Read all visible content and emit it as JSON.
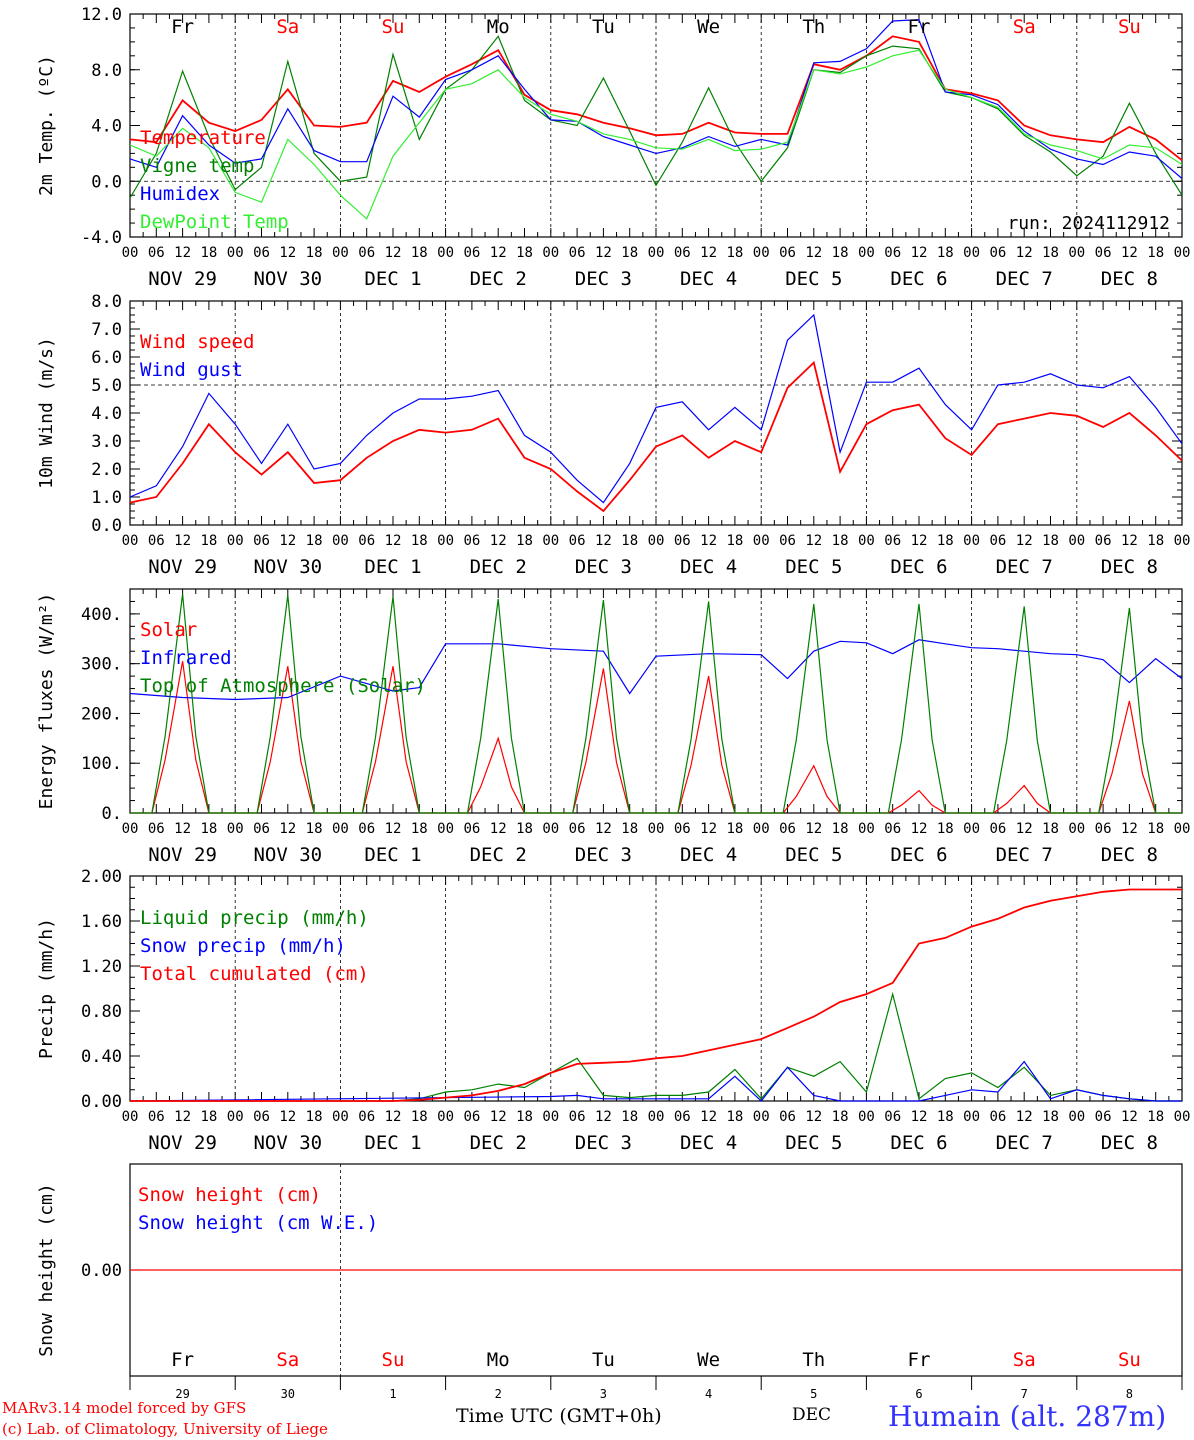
{
  "chart_data": [
    {
      "type": "line",
      "id": "temp",
      "ylabel": "2m Temp. (ºC)",
      "ylim": [
        -4,
        12
      ],
      "yticks": [
        "12.0",
        "8.0",
        "4.0",
        "0.0",
        "-4.0"
      ],
      "ytick_values": [
        12,
        8,
        4,
        0,
        -4
      ],
      "dashed_reference": 0,
      "annotation": "run: 2024112912",
      "day_letters": [
        "Fr",
        "Sa",
        "Su",
        "Mo",
        "Tu",
        "We",
        "Th",
        "Fr",
        "Sa",
        "Su"
      ],
      "day_letter_colors": [
        "#000000",
        "#ff0000",
        "#ff0000",
        "#000000",
        "#000000",
        "#000000",
        "#000000",
        "#000000",
        "#ff0000",
        "#ff0000"
      ],
      "series": [
        {
          "name": "Temperature",
          "color": "#ff0000",
          "x": [
            0,
            6,
            12,
            18,
            24,
            30,
            36,
            42,
            48,
            54,
            60,
            66,
            72,
            78,
            84,
            90,
            96,
            102,
            108,
            114,
            120,
            126,
            132,
            138,
            144,
            150,
            156,
            162,
            168,
            174,
            180,
            186,
            192,
            198,
            204,
            210,
            216,
            222,
            228,
            234,
            240
          ],
          "values": [
            3.0,
            2.8,
            5.8,
            4.2,
            3.6,
            4.4,
            6.6,
            4.0,
            3.9,
            4.2,
            7.2,
            6.4,
            7.5,
            8.4,
            9.4,
            6.2,
            5.1,
            4.8,
            4.2,
            3.8,
            3.3,
            3.4,
            4.2,
            3.5,
            3.4,
            3.4,
            8.4,
            8.0,
            9.0,
            10.4,
            10.0,
            6.6,
            6.3,
            5.8,
            4.0,
            3.3,
            3.0,
            2.8,
            3.9,
            3.0,
            1.5
          ]
        },
        {
          "name": "Vigne temp",
          "color": "#008000",
          "x": [
            0,
            6,
            12,
            18,
            24,
            30,
            36,
            42,
            48,
            54,
            60,
            66,
            72,
            78,
            84,
            90,
            96,
            102,
            108,
            114,
            120,
            126,
            132,
            138,
            144,
            150,
            156,
            162,
            168,
            174,
            180,
            186,
            192,
            198,
            204,
            210,
            216,
            222,
            228,
            234,
            240
          ],
          "values": [
            -1.2,
            2.0,
            7.9,
            3.2,
            -0.6,
            1.0,
            8.6,
            2.0,
            0.0,
            0.3,
            9.1,
            3.0,
            6.6,
            8.0,
            10.4,
            5.8,
            4.4,
            4.0,
            7.4,
            3.6,
            -0.3,
            2.8,
            6.7,
            2.8,
            0.0,
            2.4,
            8.0,
            7.8,
            9.0,
            9.7,
            9.5,
            6.4,
            6.0,
            5.2,
            3.3,
            2.1,
            0.4,
            1.8,
            5.6,
            2.0,
            -1.0
          ]
        },
        {
          "name": "Humidex",
          "color": "#0000ff",
          "x": [
            0,
            6,
            12,
            18,
            24,
            30,
            36,
            42,
            48,
            54,
            60,
            66,
            72,
            78,
            84,
            90,
            96,
            102,
            108,
            114,
            120,
            126,
            132,
            138,
            144,
            150,
            156,
            162,
            168,
            174,
            180,
            186,
            192,
            198,
            204,
            210,
            216,
            222,
            228,
            234,
            240
          ],
          "values": [
            1.6,
            1.0,
            4.7,
            2.6,
            1.3,
            1.6,
            5.2,
            2.2,
            1.4,
            1.4,
            6.1,
            4.6,
            7.3,
            8.0,
            9.0,
            6.6,
            4.4,
            4.3,
            3.2,
            2.6,
            2.0,
            2.4,
            3.2,
            2.5,
            3.0,
            2.6,
            8.5,
            8.6,
            9.5,
            11.5,
            11.6,
            6.4,
            6.2,
            5.5,
            3.6,
            2.3,
            1.6,
            1.2,
            2.1,
            1.8,
            0.2
          ]
        },
        {
          "name": "DewPoint Temp",
          "color": "#33ee33",
          "x": [
            0,
            6,
            12,
            18,
            24,
            30,
            36,
            42,
            48,
            54,
            60,
            66,
            72,
            78,
            84,
            90,
            96,
            102,
            108,
            114,
            120,
            126,
            132,
            138,
            144,
            150,
            156,
            162,
            168,
            174,
            180,
            186,
            192,
            198,
            204,
            210,
            216,
            222,
            228,
            234,
            240
          ],
          "values": [
            2.6,
            1.8,
            3.8,
            2.4,
            -0.8,
            -1.5,
            3.0,
            1.2,
            -1.0,
            -2.7,
            1.8,
            4.2,
            6.6,
            7.0,
            8.0,
            6.0,
            4.8,
            4.3,
            3.4,
            3.0,
            2.4,
            2.3,
            3.0,
            2.2,
            2.3,
            2.8,
            8.0,
            7.7,
            8.2,
            9.0,
            9.4,
            6.6,
            6.0,
            5.3,
            3.4,
            2.6,
            2.2,
            1.6,
            2.6,
            2.4,
            1.2
          ]
        }
      ]
    },
    {
      "type": "line",
      "id": "wind",
      "ylabel": "10m Wind (m/s)",
      "ylim": [
        0,
        8
      ],
      "yticks": [
        "8.0",
        "7.0",
        "6.0",
        "5.0",
        "4.0",
        "3.0",
        "2.0",
        "1.0",
        "0.0"
      ],
      "ytick_values": [
        8,
        7,
        6,
        5,
        4,
        3,
        2,
        1,
        0
      ],
      "dashed_reference": 5,
      "series": [
        {
          "name": "Wind speed",
          "color": "#ff0000",
          "x": [
            0,
            6,
            12,
            18,
            24,
            30,
            36,
            42,
            48,
            54,
            60,
            66,
            72,
            78,
            84,
            90,
            96,
            102,
            108,
            114,
            120,
            126,
            132,
            138,
            144,
            150,
            156,
            162,
            168,
            174,
            180,
            186,
            192,
            198,
            204,
            210,
            216,
            222,
            228,
            234,
            240
          ],
          "values": [
            0.8,
            1.0,
            2.2,
            3.6,
            2.6,
            1.8,
            2.6,
            1.5,
            1.6,
            2.4,
            3.0,
            3.4,
            3.3,
            3.4,
            3.8,
            2.4,
            2.0,
            1.2,
            0.5,
            1.6,
            2.8,
            3.2,
            2.4,
            3.0,
            2.6,
            4.9,
            5.8,
            1.9,
            3.6,
            4.1,
            4.3,
            3.1,
            2.5,
            3.6,
            3.8,
            4.0,
            3.9,
            3.5,
            4.0,
            3.2,
            2.3
          ]
        },
        {
          "name": "Wind gust",
          "color": "#0000ff",
          "x": [
            0,
            6,
            12,
            18,
            24,
            30,
            36,
            42,
            48,
            54,
            60,
            66,
            72,
            78,
            84,
            90,
            96,
            102,
            108,
            114,
            120,
            126,
            132,
            138,
            144,
            150,
            156,
            162,
            168,
            174,
            180,
            186,
            192,
            198,
            204,
            210,
            216,
            222,
            228,
            234,
            240
          ],
          "values": [
            1.0,
            1.4,
            2.8,
            4.7,
            3.6,
            2.2,
            3.6,
            2.0,
            2.2,
            3.2,
            4.0,
            4.5,
            4.5,
            4.6,
            4.8,
            3.2,
            2.6,
            1.6,
            0.8,
            2.2,
            4.2,
            4.4,
            3.4,
            4.2,
            3.4,
            6.6,
            7.5,
            2.6,
            5.1,
            5.1,
            5.6,
            4.3,
            3.4,
            5.0,
            5.1,
            5.4,
            5.0,
            4.9,
            5.3,
            4.2,
            2.9
          ]
        }
      ]
    },
    {
      "type": "line",
      "id": "energy",
      "ylabel": "Energy fluxes (W/m²)",
      "ylim": [
        0,
        450
      ],
      "yticks": [
        "400.",
        "300.",
        "200.",
        "100.",
        "0."
      ],
      "ytick_values": [
        400,
        300,
        200,
        100,
        0
      ],
      "series": [
        {
          "name": "Solar",
          "color": "#ff0000",
          "daily_peaks": [
            305,
            295,
            295,
            150,
            290,
            275,
            95,
            45,
            55,
            225
          ]
        },
        {
          "name": "Infrared",
          "color": "#0000ff",
          "x": [
            0,
            12,
            24,
            36,
            48,
            60,
            66,
            72,
            84,
            96,
            108,
            114,
            120,
            132,
            144,
            150,
            156,
            162,
            168,
            174,
            180,
            186,
            192,
            198,
            204,
            210,
            216,
            222,
            228,
            234,
            240
          ],
          "values": [
            240,
            232,
            228,
            232,
            275,
            245,
            252,
            340,
            340,
            330,
            325,
            240,
            315,
            320,
            318,
            270,
            325,
            345,
            342,
            320,
            348,
            340,
            332,
            330,
            325,
            320,
            318,
            308,
            262,
            310,
            270
          ]
        },
        {
          "name": "Top of Atmosphere (Solar)",
          "color": "#008000",
          "daily_peaks": [
            440,
            438,
            435,
            430,
            428,
            425,
            420,
            420,
            415,
            412
          ]
        }
      ]
    },
    {
      "type": "line",
      "id": "precip",
      "ylabel": "Precip (mm/h)",
      "ylim": [
        0,
        2
      ],
      "yticks": [
        "2.00",
        "1.60",
        "1.20",
        "0.80",
        "0.40",
        "0.00"
      ],
      "ytick_values": [
        2.0,
        1.6,
        1.2,
        0.8,
        0.4,
        0.0
      ],
      "series": [
        {
          "name": "Liquid precip (mm/h)",
          "color": "#008000",
          "x": [
            0,
            60,
            66,
            72,
            78,
            84,
            90,
            96,
            102,
            108,
            114,
            120,
            126,
            132,
            138,
            144,
            150,
            156,
            162,
            168,
            174,
            180,
            186,
            192,
            198,
            204,
            210,
            216,
            222,
            228,
            234,
            240
          ],
          "values": [
            0,
            0,
            0.02,
            0.08,
            0.1,
            0.15,
            0.12,
            0.25,
            0.38,
            0.05,
            0.03,
            0.05,
            0.05,
            0.08,
            0.28,
            0.02,
            0.3,
            0.22,
            0.35,
            0.08,
            0.95,
            0.02,
            0.2,
            0.25,
            0.12,
            0.3,
            0.05,
            0.1,
            0.05,
            0.02,
            0,
            0
          ]
        },
        {
          "name": "Snow precip (mm/h)",
          "color": "#0000ff",
          "x": [
            0,
            96,
            102,
            108,
            132,
            138,
            144,
            150,
            156,
            162,
            174,
            180,
            186,
            192,
            198,
            204,
            210,
            216,
            222,
            228,
            234,
            240
          ],
          "values": [
            0,
            0.04,
            0.05,
            0.02,
            0.02,
            0.22,
            0.0,
            0.3,
            0.05,
            0.0,
            0.0,
            0.0,
            0.05,
            0.1,
            0.08,
            0.35,
            0.02,
            0.1,
            0.05,
            0.02,
            0,
            0
          ]
        },
        {
          "name": "Total cumulated (cm)",
          "color": "#ff0000",
          "x": [
            0,
            60,
            66,
            72,
            78,
            84,
            90,
            96,
            102,
            108,
            114,
            120,
            126,
            132,
            138,
            144,
            150,
            156,
            162,
            168,
            174,
            180,
            186,
            192,
            198,
            204,
            210,
            216,
            222,
            228,
            234,
            240
          ],
          "values": [
            0,
            0,
            0.01,
            0.03,
            0.05,
            0.09,
            0.15,
            0.25,
            0.33,
            0.34,
            0.35,
            0.38,
            0.4,
            0.45,
            0.5,
            0.55,
            0.65,
            0.75,
            0.88,
            0.95,
            1.05,
            1.4,
            1.45,
            1.55,
            1.62,
            1.72,
            1.78,
            1.82,
            1.86,
            1.88,
            1.88,
            1.88
          ]
        }
      ]
    },
    {
      "type": "line",
      "id": "snow",
      "ylabel": "Snow height (cm)",
      "ylim": [
        -1,
        1
      ],
      "yticks": [
        "0.00"
      ],
      "ytick_values": [
        0
      ],
      "series": [
        {
          "name": "Snow height (cm)",
          "color": "#ff0000",
          "x": [
            0,
            240
          ],
          "values": [
            0,
            0
          ]
        },
        {
          "name": "Snow height (cm W.E.)",
          "color": "#0000ff",
          "x": [],
          "values": []
        }
      ]
    }
  ],
  "x_axis": {
    "hour_labels": [
      "00",
      "06",
      "12",
      "18"
    ],
    "date_labels": [
      "NOV 29",
      "NOV 30",
      "DEC  1",
      "DEC  2",
      "DEC  3",
      "DEC  4",
      "DEC  5",
      "DEC  6",
      "DEC  7",
      "DEC  8"
    ],
    "final_hour_label": "00"
  },
  "bottom_axis": {
    "day_letters": [
      "Fr",
      "Sa",
      "Su",
      "Mo",
      "Tu",
      "We",
      "Th",
      "Fr",
      "Sa",
      "Su"
    ],
    "day_numbers": [
      "29",
      "30",
      "1",
      "2",
      "3",
      "4",
      "5",
      "6",
      "7",
      "8"
    ],
    "month": "DEC",
    "title": "Time UTC (GMT+0h)"
  },
  "footer": {
    "credit_line1": "MARv3.14 model forced by GFS",
    "credit_line2": "(c) Lab. of Climatology, University of Liege",
    "station": "Humain (alt. 287m)"
  },
  "colors": {
    "red": "#ff0000",
    "green": "#008000",
    "blue": "#0000ff",
    "lightgreen": "#33ee33",
    "station": "#3333ff"
  }
}
